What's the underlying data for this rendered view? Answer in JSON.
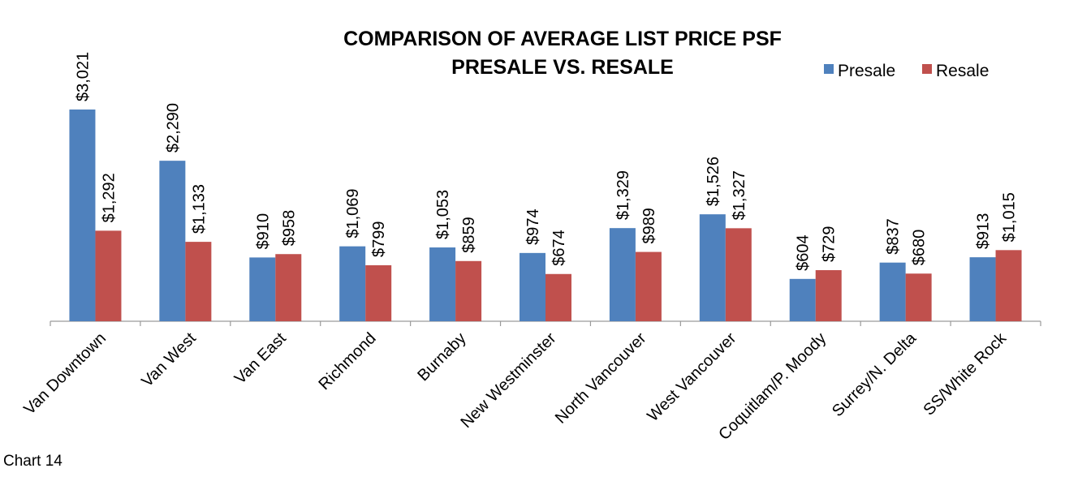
{
  "chart_data": {
    "type": "bar",
    "title": "COMPARISON OF AVERAGE LIST PRICE PSF",
    "subtitle": "PRESALE VS. RESALE",
    "categories": [
      "Van Downtown",
      "Van West",
      "Van East",
      "Richmond",
      "Burnaby",
      "New Westminster",
      "North Vancouver",
      "West Vancouver",
      "Coquitlam/P. Moody",
      "Surrey/N. Delta",
      "SS/White Rock"
    ],
    "series": [
      {
        "name": "Presale",
        "color": "#4f81bd",
        "values": [
          3021,
          2290,
          910,
          1069,
          1053,
          974,
          1329,
          1526,
          604,
          837,
          913
        ],
        "labels": [
          "$3,021",
          "$2,290",
          "$910",
          "$1,069",
          "$1,053",
          "$974",
          "$1,329",
          "$1,526",
          "$604",
          "$837",
          "$913"
        ]
      },
      {
        "name": "Resale",
        "color": "#c0504d",
        "values": [
          1292,
          1133,
          958,
          799,
          859,
          674,
          989,
          1327,
          729,
          680,
          1015
        ],
        "labels": [
          "$1,292",
          "$1,133",
          "$958",
          "$799",
          "$859",
          "$674",
          "$989",
          "$1,327",
          "$729",
          "$680",
          "$1,015"
        ]
      }
    ],
    "xlabel": "",
    "ylabel": "",
    "ylim": [
      0,
      3021
    ],
    "grid": false,
    "legend_position": "top-right"
  },
  "caption": "Chart 14"
}
